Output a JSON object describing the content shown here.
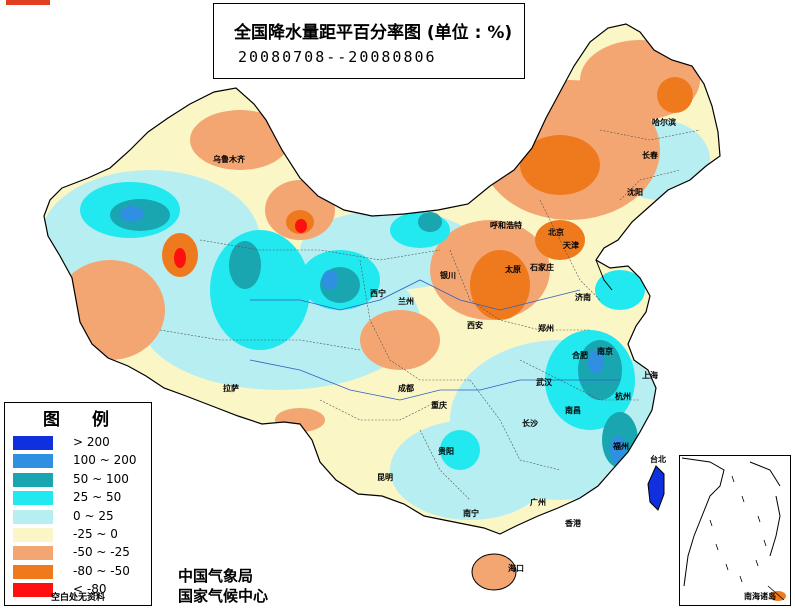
{
  "title": {
    "main": "全国降水量距平百分率图 (单位 : %)",
    "period": "20080708--20080806"
  },
  "legend": {
    "heading_left": "图",
    "heading_right": "例",
    "items": [
      {
        "label": "> 200",
        "color": "#1030e0"
      },
      {
        "label": "100 ~ 200",
        "color": "#2f8fe0"
      },
      {
        "label": "50 ~ 100",
        "color": "#1aa6b0"
      },
      {
        "label": "25 ~ 50",
        "color": "#22e8f0"
      },
      {
        "label": "0 ~ 25",
        "color": "#b6eef2"
      },
      {
        "label": "-25 ~ 0",
        "color": "#fbf6c6"
      },
      {
        "label": "-50 ~ -25",
        "color": "#f3a672"
      },
      {
        "label": "-80 ~ -50",
        "color": "#ef7a1e"
      },
      {
        "label": "< -80",
        "color": "#ff1010"
      }
    ],
    "note": "空白处无资料"
  },
  "agency": {
    "line1": "中国气象局",
    "line2": "国家气候中心"
  },
  "inset": {
    "label": "南海诸岛"
  },
  "cities": [
    {
      "name": "乌鲁木齐"
    },
    {
      "name": "呼和浩特"
    },
    {
      "name": "北京"
    },
    {
      "name": "天津"
    },
    {
      "name": "太原"
    },
    {
      "name": "石家庄"
    },
    {
      "name": "济南"
    },
    {
      "name": "银川"
    },
    {
      "name": "西宁"
    },
    {
      "name": "兰州"
    },
    {
      "name": "西安"
    },
    {
      "name": "郑州"
    },
    {
      "name": "合肥"
    },
    {
      "name": "南京"
    },
    {
      "name": "上海"
    },
    {
      "name": "武汉"
    },
    {
      "name": "杭州"
    },
    {
      "name": "南昌"
    },
    {
      "name": "长沙"
    },
    {
      "name": "福州"
    },
    {
      "name": "台北"
    },
    {
      "name": "成都"
    },
    {
      "name": "重庆"
    },
    {
      "name": "贵阳"
    },
    {
      "name": "昆明"
    },
    {
      "name": "南宁"
    },
    {
      "name": "广州"
    },
    {
      "name": "香港"
    },
    {
      "name": "海口"
    },
    {
      "name": "拉萨"
    },
    {
      "name": "哈尔滨"
    },
    {
      "name": "长春"
    },
    {
      "name": "沈阳"
    }
  ]
}
